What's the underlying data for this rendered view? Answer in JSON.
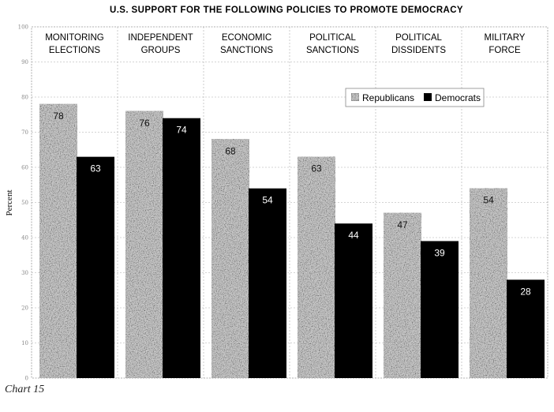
{
  "caption": "Chart 15",
  "chart_data": {
    "type": "bar",
    "title": "U.S. SUPPORT FOR THE FOLLOWING POLICIES TO PROMOTE DEMOCRACY",
    "ylabel": "Percent",
    "xlabel": "",
    "ylim": [
      0,
      100
    ],
    "yticks": [
      0,
      10,
      20,
      30,
      40,
      50,
      60,
      70,
      80,
      90,
      100
    ],
    "categories": [
      [
        "MONITORING",
        "ELECTIONS"
      ],
      [
        "INDEPENDENT",
        "GROUPS"
      ],
      [
        "ECONOMIC",
        "SANCTIONS"
      ],
      [
        "POLITICAL",
        "SANCTIONS"
      ],
      [
        "POLITICAL",
        "DISSIDENTS"
      ],
      [
        "MILITARY",
        "FORCE"
      ]
    ],
    "series": [
      {
        "name": "Republicans",
        "values": [
          78,
          76,
          68,
          63,
          47,
          54
        ],
        "color": "#c8c8c8"
      },
      {
        "name": "Democrats",
        "values": [
          63,
          74,
          54,
          44,
          39,
          28
        ],
        "color": "#000000"
      }
    ],
    "legend_position": "top-right",
    "grid": true
  }
}
